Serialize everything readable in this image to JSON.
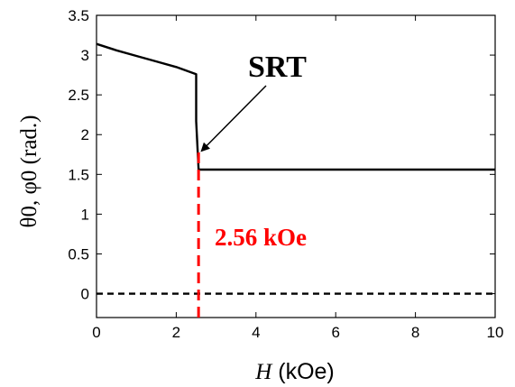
{
  "chart_data": {
    "type": "line",
    "xlabel": {
      "var": "H",
      "unit": " (kOe)"
    },
    "ylabel": "θ0, φ0 (rad.)",
    "xlim": [
      0,
      10
    ],
    "ylim": [
      -0.3,
      3.5
    ],
    "x_ticks": [
      "0",
      "2",
      "4",
      "6",
      "8",
      "10"
    ],
    "y_ticks": [
      "0",
      "0.5",
      "1",
      "1.5",
      "2",
      "2.5",
      "3",
      "3.5"
    ],
    "grid": false,
    "series": [
      {
        "style": "solid",
        "color": "#000000",
        "points": [
          [
            0,
            3.14
          ],
          [
            0.5,
            3.06
          ],
          [
            1.0,
            2.99
          ],
          [
            1.5,
            2.92
          ],
          [
            2.0,
            2.85
          ],
          [
            2.5,
            2.76
          ],
          [
            2.5,
            2.17
          ],
          [
            2.56,
            1.56
          ],
          [
            10,
            1.56
          ]
        ]
      },
      {
        "style": "dashed",
        "color": "#000000",
        "points": [
          [
            0,
            0
          ],
          [
            10,
            0
          ]
        ]
      }
    ],
    "annotations": [
      {
        "text": "SRT",
        "color": "#000000",
        "arrow_to": [
          2.56,
          1.78
        ]
      },
      {
        "text": "2.56 kOe",
        "color": "#ff0000",
        "marker_x": 2.56,
        "marker_range": [
          -0.3,
          1.78
        ]
      }
    ]
  }
}
